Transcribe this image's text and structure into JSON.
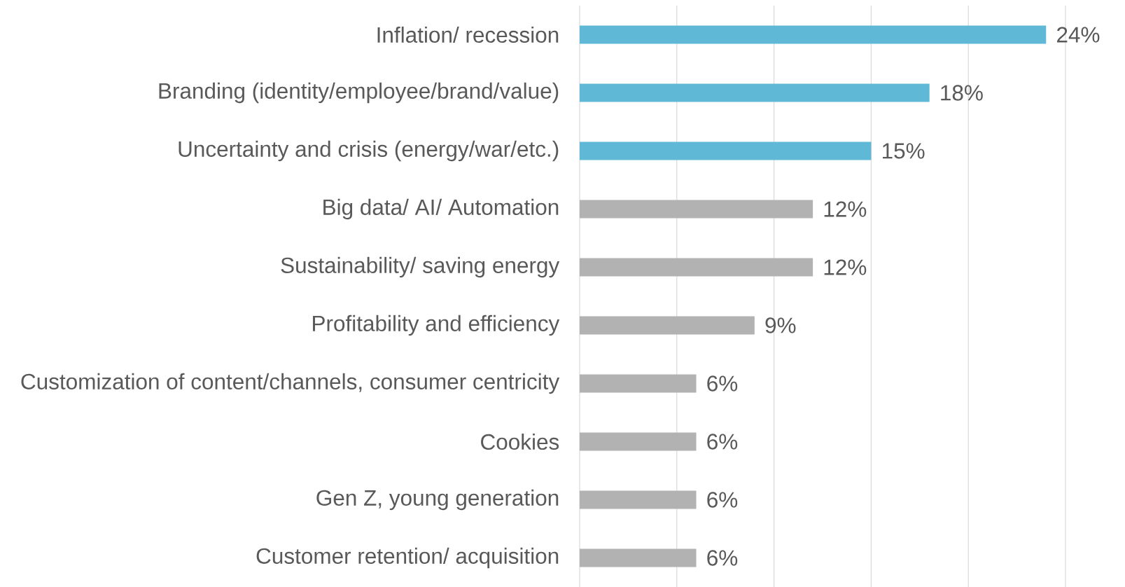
{
  "chart_data": {
    "type": "bar",
    "orientation": "horizontal",
    "categories": [
      "Inflation/ recession",
      "Branding (identity/employee/brand/value)",
      "Uncertainty and crisis (energy/war/etc.)",
      "Big data/ AI/ Automation",
      "Sustainability/ saving energy",
      "Profitability and efficiency",
      "Customization of content/channels, consumer centricity",
      "Cookies",
      "Gen Z, young generation",
      "Customer retention/ acquisition"
    ],
    "values": [
      24,
      18,
      15,
      12,
      12,
      9,
      6,
      6,
      6,
      6
    ],
    "value_labels": [
      "24%",
      "18%",
      "15%",
      "12%",
      "12%",
      "9%",
      "6%",
      "6%",
      "6%",
      "6%"
    ],
    "colors": [
      "#5fb9d6",
      "#5fb9d6",
      "#5fb9d6",
      "#b2b2b2",
      "#b2b2b2",
      "#b2b2b2",
      "#b2b2b2",
      "#b2b2b2",
      "#b2b2b2",
      "#b2b2b2"
    ],
    "xlim": [
      0,
      25
    ],
    "xticks": [
      {
        "value": 0,
        "label": null
      },
      {
        "value": 5,
        "label": null
      },
      {
        "value": 10,
        "label": null
      },
      {
        "value": 15,
        "label": null
      },
      {
        "value": 20,
        "label": null
      },
      {
        "value": 25,
        "label": null
      }
    ],
    "grid": "x",
    "tick_labels": "y"
  }
}
